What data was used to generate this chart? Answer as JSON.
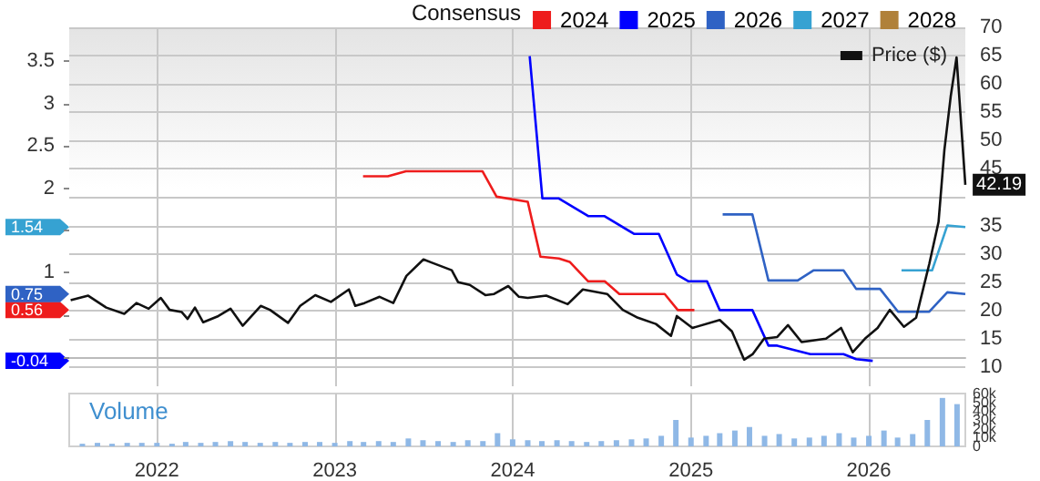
{
  "chart_data": [
    {
      "type": "line",
      "legend_title": "Consensus",
      "legend": "top right",
      "grid": true,
      "tick_labels": "y",
      "marker": "none",
      "xlim": [
        "2021-07-05",
        "2026-07-18"
      ],
      "xticks": [
        "2022",
        "2023",
        "2024",
        "2025",
        "2026"
      ],
      "ylim": [
        -0.34,
        3.9
      ],
      "yticks": [
        {
          "value": 0,
          "label": null
        },
        {
          "value": 0.5,
          "label": null
        },
        1,
        {
          "value": 1.5,
          "label": null
        },
        2,
        2.5,
        3,
        3.5
      ],
      "y2lim": [
        6.6,
        70
      ],
      "y2ticks": [
        10,
        15,
        20,
        25,
        30,
        35,
        {
          "value": 40,
          "label": null
        },
        45,
        50,
        55,
        60,
        65,
        70
      ],
      "annotations": [
        "1.54",
        "0.75",
        "0.56",
        "-0.04"
      ],
      "series": [
        {
          "name": "2024",
          "color": "#ee1c1c",
          "x": [
            "2023-02-28",
            "2023-04-20",
            "2023-05-27",
            "2023-10-31",
            "2023-11-29",
            "2024-02-01",
            "2024-02-27",
            "2024-04-05",
            "2024-04-27",
            "2024-06-04",
            "2024-07-08",
            "2024-08-07",
            "2024-11-08",
            "2024-12-05",
            "2025-01-08"
          ],
          "values": [
            2.14,
            2.14,
            2.2,
            2.2,
            1.9,
            1.84,
            1.19,
            1.17,
            1.13,
            0.9,
            0.9,
            0.75,
            0.75,
            0.56,
            0.56
          ]
        },
        {
          "name": "2025",
          "color": "#0000ff",
          "x": [
            "2024-02-05",
            "2024-03-02",
            "2024-04-04",
            "2024-06-04",
            "2024-07-07",
            "2024-09-06",
            "2024-10-27",
            "2024-12-03",
            "2024-12-27",
            "2025-02-03",
            "2025-03-01",
            "2025-05-07",
            "2025-06-09",
            "2025-06-27",
            "2025-09-03",
            "2025-11-10",
            "2025-12-06",
            "2026-01-09"
          ],
          "values": [
            3.56,
            1.88,
            1.88,
            1.67,
            1.67,
            1.46,
            1.46,
            0.98,
            0.9,
            0.9,
            0.56,
            0.56,
            0.14,
            0.14,
            0.04,
            0.04,
            -0.02,
            -0.04
          ]
        },
        {
          "name": "2026",
          "color": "#2f62c4",
          "x": [
            "2025-03-07",
            "2025-05-07",
            "2025-06-09",
            "2025-08-08",
            "2025-09-10",
            "2025-11-10",
            "2025-12-06",
            "2026-01-24",
            "2026-03-02",
            "2026-05-05",
            "2026-06-11",
            "2026-07-18"
          ],
          "values": [
            1.69,
            1.69,
            0.91,
            0.91,
            1.03,
            1.03,
            0.81,
            0.81,
            0.54,
            0.54,
            0.77,
            0.75
          ]
        },
        {
          "name": "2027",
          "color": "#36a2d2",
          "x": [
            "2026-03-09",
            "2026-05-11",
            "2026-06-11",
            "2026-07-18"
          ],
          "values": [
            1.03,
            1.03,
            1.56,
            1.54
          ]
        },
        {
          "name": "2028",
          "color": "#b0813a"
        },
        {
          "name": "Price ($)",
          "color": "#111111",
          "axis": "y2",
          "x": [
            "2021-07-08",
            "2021-08-13",
            "2021-09-19",
            "2021-10-26",
            "2021-11-20",
            "2021-12-15",
            "2022-01-09",
            "2022-01-27",
            "2022-02-21",
            "2022-03-05",
            "2022-03-20",
            "2022-04-06",
            "2022-05-07",
            "2022-06-01",
            "2022-06-26",
            "2022-08-02",
            "2022-08-21",
            "2022-09-27",
            "2022-10-22",
            "2022-11-22",
            "2022-12-24",
            "2023-01-30",
            "2023-02-12",
            "2023-03-03",
            "2023-04-03",
            "2023-05-01",
            "2023-05-28",
            "2023-07-02",
            "2023-07-17",
            "2023-08-29",
            "2023-09-11",
            "2023-10-05",
            "2023-11-06",
            "2023-11-24",
            "2023-12-23",
            "2024-01-14",
            "2024-02-01",
            "2024-03-10",
            "2024-04-23",
            "2024-05-24",
            "2024-07-13",
            "2024-08-14",
            "2024-09-14",
            "2024-10-21",
            "2024-11-21",
            "2024-12-03",
            "2025-01-04",
            "2025-03-01",
            "2025-03-26",
            "2025-04-20",
            "2025-05-08",
            "2025-05-31",
            "2025-06-27",
            "2025-07-19",
            "2025-08-16",
            "2025-10-05",
            "2025-11-05",
            "2025-11-29",
            "2025-12-24",
            "2026-01-19",
            "2026-02-13",
            "2026-03-14",
            "2026-04-08",
            "2026-05-05",
            "2026-05-24",
            "2026-06-05",
            "2026-06-18",
            "2026-06-30",
            "2026-07-18"
          ],
          "values": [
            21.8,
            22.6,
            20.5,
            19.4,
            21.3,
            20.3,
            22.2,
            20.1,
            19.7,
            18.5,
            20.5,
            17.9,
            19.0,
            20.3,
            17.3,
            20.8,
            20.1,
            17.8,
            20.8,
            22.7,
            21.5,
            23.7,
            20.8,
            21.3,
            22.4,
            21.3,
            26.1,
            29.0,
            28.5,
            27.1,
            25.0,
            24.5,
            22.7,
            22.9,
            24.3,
            22.4,
            22.2,
            22.6,
            21.1,
            23.7,
            22.9,
            20.1,
            18.7,
            17.6,
            15.5,
            19.0,
            16.9,
            18.3,
            16.3,
            11.3,
            12.3,
            15.0,
            15.3,
            17.4,
            14.4,
            15.0,
            16.9,
            12.6,
            15.0,
            16.9,
            20.1,
            17.1,
            18.7,
            28.2,
            35.6,
            48.3,
            57.8,
            64.7,
            42.19
          ],
          "value_labels": [
            null,
            null,
            null,
            null,
            null,
            null,
            null,
            null,
            null,
            null,
            null,
            null,
            null,
            null,
            null,
            null,
            null,
            null,
            null,
            null,
            null,
            null,
            null,
            null,
            null,
            null,
            null,
            null,
            null,
            null,
            null,
            null,
            null,
            null,
            null,
            null,
            null,
            null,
            null,
            null,
            null,
            null,
            null,
            null,
            null,
            null,
            null,
            null,
            null,
            null,
            null,
            null,
            null,
            null,
            null,
            null,
            null,
            null,
            null,
            null,
            null,
            null,
            null,
            null,
            null,
            null,
            null,
            null,
            "42.19"
          ]
        }
      ]
    },
    {
      "type": "bar",
      "title": "Volume",
      "grid": "x",
      "xlim": [
        "2021-07-05",
        "2026-07-18"
      ],
      "xticks": [
        "2022",
        "2023",
        "2024",
        "2025",
        "2026"
      ],
      "ylim": [
        0,
        60000
      ],
      "yticks": [
        0,
        {
          "value": 10000,
          "label": "10k"
        },
        {
          "value": 20000,
          "label": "20k"
        },
        {
          "value": 30000,
          "label": "30k"
        },
        {
          "value": 40000,
          "label": "40k"
        },
        {
          "value": 50000,
          "label": "50k"
        },
        {
          "value": 60000,
          "label": "60k"
        }
      ],
      "series": [
        {
          "color": "#8fb8e6",
          "x": [
            "2021-08",
            "2021-09",
            "2021-10",
            "2021-11",
            "2021-12",
            "2022-01",
            "2022-02",
            "2022-03",
            "2022-04",
            "2022-05",
            "2022-06",
            "2022-07",
            "2022-08",
            "2022-09",
            "2022-10",
            "2022-11",
            "2022-12",
            "2023-01",
            "2023-02",
            "2023-03",
            "2023-04",
            "2023-05",
            "2023-06",
            "2023-07",
            "2023-08",
            "2023-09",
            "2023-10",
            "2023-11",
            "2023-12",
            "2024-01",
            "2024-02",
            "2024-03",
            "2024-04",
            "2024-05",
            "2024-06",
            "2024-07",
            "2024-08",
            "2024-09",
            "2024-10",
            "2024-11",
            "2024-12",
            "2025-01",
            "2025-02",
            "2025-03",
            "2025-04",
            "2025-05",
            "2025-06",
            "2025-07",
            "2025-08",
            "2025-09",
            "2025-10",
            "2025-11",
            "2025-12",
            "2026-01",
            "2026-02",
            "2026-03",
            "2026-04",
            "2026-05",
            "2026-06",
            "2026-07"
          ],
          "values": [
            3000,
            4000,
            3000,
            4000,
            4000,
            4000,
            3000,
            5000,
            4000,
            5000,
            6000,
            5000,
            4000,
            5000,
            4000,
            5000,
            5000,
            4000,
            6000,
            5000,
            6000,
            5000,
            9000,
            7000,
            6000,
            5000,
            7000,
            6000,
            15000,
            8000,
            7000,
            6000,
            7000,
            6000,
            5000,
            6000,
            7000,
            8000,
            9000,
            12000,
            30000,
            10000,
            12000,
            15000,
            18000,
            22000,
            12000,
            14000,
            9000,
            10000,
            12000,
            15000,
            10000,
            12000,
            18000,
            10000,
            14000,
            30000,
            55000,
            48000
          ]
        }
      ]
    }
  ]
}
